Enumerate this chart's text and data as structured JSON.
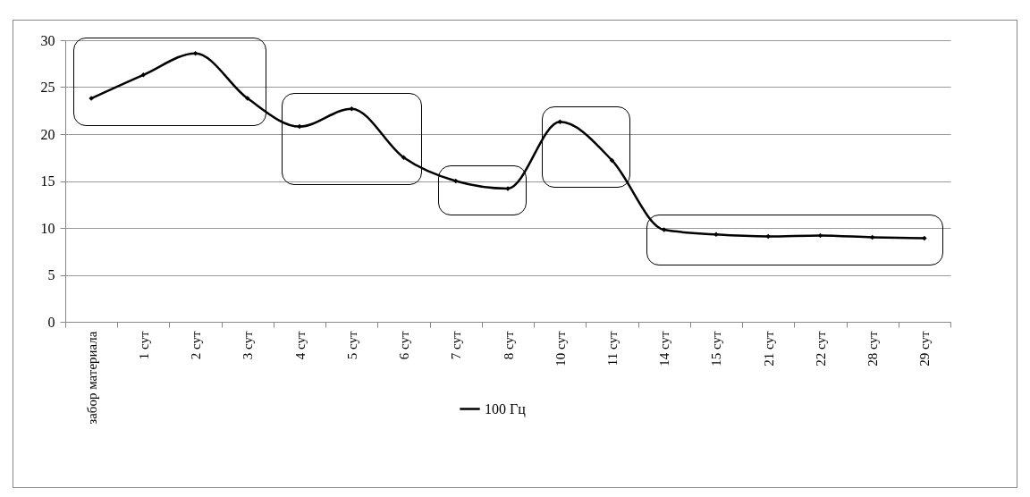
{
  "chart_data": {
    "type": "line",
    "categories": [
      "забор материала",
      "1 сут",
      "2 сут",
      "3 сут",
      "4 сут",
      "5 сут",
      "6 сут",
      "7 сут",
      "8 сут",
      "10 сут",
      "11 сут",
      "14 сут",
      "15 сут",
      "21 сут",
      "22 сут",
      "28 сут",
      "29 сут"
    ],
    "series": [
      {
        "name": "100 Гц",
        "color": "#000000",
        "values": [
          23.8,
          26.3,
          28.6,
          23.8,
          20.8,
          22.7,
          17.5,
          15.0,
          14.2,
          21.3,
          17.2,
          9.8,
          9.3,
          9.1,
          9.2,
          9.0,
          8.9
        ]
      }
    ],
    "ylim": [
      0,
      30
    ],
    "yticks": [
      0,
      5,
      10,
      15,
      20,
      25,
      30
    ],
    "grid": "y",
    "legend": "bottom",
    "marker": "diamond",
    "line_style": "solid"
  }
}
